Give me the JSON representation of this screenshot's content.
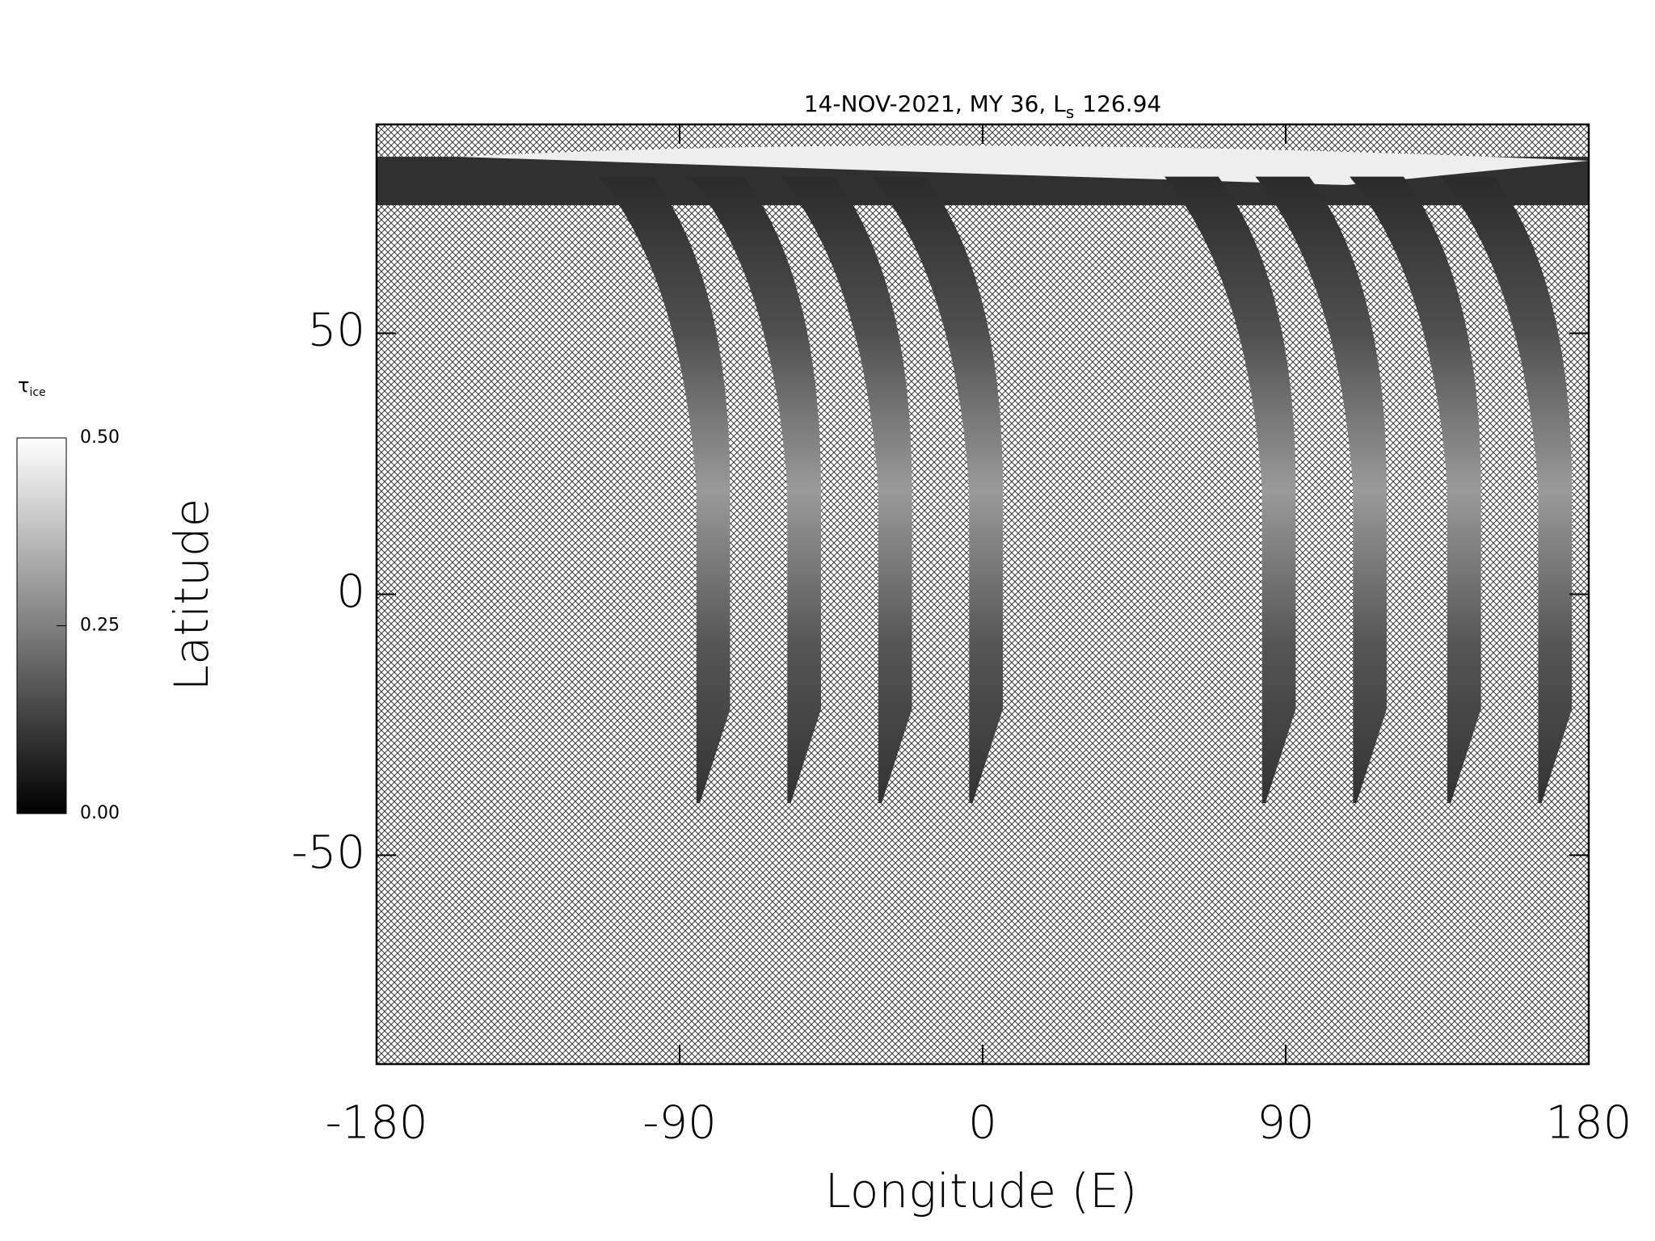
{
  "chart_data": {
    "type": "map",
    "title": {
      "main": "14-NOV-2021, MY 36,",
      "symbol": "L",
      "subscript": "s",
      "value": "126.94"
    },
    "xlabel": "Longitude (E)",
    "ylabel": "Latitude",
    "xlim": [
      -180,
      180
    ],
    "xticks": [
      -180,
      -90,
      0,
      90,
      180
    ],
    "ylim": [
      -90,
      90
    ],
    "yticks": [
      -50,
      0,
      50
    ],
    "colorbar": {
      "label": {
        "symbol": "τ",
        "subscript": "ice"
      },
      "lim": [
        0,
        0.5
      ],
      "ticks": [
        {
          "value": 0,
          "label": "0.00"
        },
        {
          "value": 0.25,
          "label": "0.25"
        },
        {
          "value": 0.5,
          "label": "0.50"
        }
      ]
    }
  }
}
